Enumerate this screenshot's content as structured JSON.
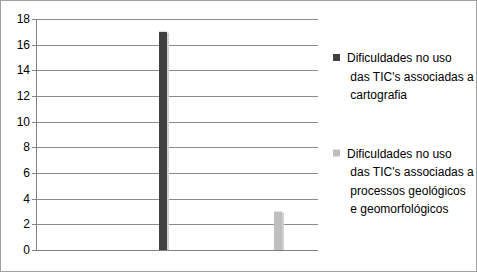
{
  "chart_data": {
    "type": "bar",
    "categories": [
      null,
      null
    ],
    "series": [
      {
        "name": "Dificuldades no uso das TIC's associadas a cartografia",
        "color": "#404040",
        "values": [
          17,
          null
        ]
      },
      {
        "name": "Dificuldades no uso das TIC's associadas a processos geológicos e geomorfológicos",
        "color": "#bfbfbf",
        "values": [
          null,
          3
        ]
      }
    ],
    "ylim": [
      0,
      18
    ],
    "yticks": [
      0,
      2,
      4,
      6,
      8,
      10,
      12,
      14,
      16,
      18
    ],
    "grid": true,
    "legend": "right",
    "tick_labels": "y"
  }
}
